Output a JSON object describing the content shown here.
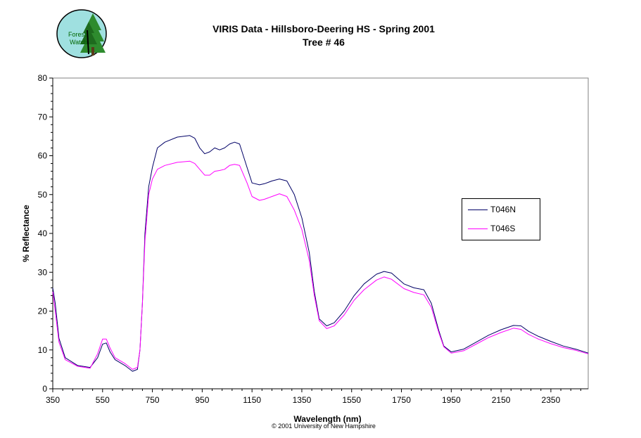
{
  "title_line1": "VIRIS Data - Hillsboro-Deering HS - Spring 2001",
  "title_line2": "Tree # 46",
  "logo_text": [
    "Forest",
    "Watch"
  ],
  "copyright": "© 2001 University of New Hampshire",
  "chart_data": {
    "type": "line",
    "title": "VIRIS Data - Hillsboro-Deering HS - Spring 2001 Tree # 46",
    "xlabel": "Wavelength (nm)",
    "ylabel": "% Reflectance",
    "xlim": [
      350,
      2500
    ],
    "ylim": [
      0,
      80
    ],
    "xticks": [
      350,
      550,
      750,
      950,
      1150,
      1350,
      1550,
      1750,
      1950,
      2150,
      2350
    ],
    "yticks": [
      0,
      10,
      20,
      30,
      40,
      50,
      60,
      70,
      80
    ],
    "grid": false,
    "legend_position": "right",
    "series": [
      {
        "name": "T046N",
        "color": "#000066",
        "points": [
          [
            350,
            26
          ],
          [
            360,
            22
          ],
          [
            375,
            13
          ],
          [
            400,
            8
          ],
          [
            450,
            6
          ],
          [
            500,
            5.5
          ],
          [
            530,
            8
          ],
          [
            550,
            11.5
          ],
          [
            565,
            11.8
          ],
          [
            580,
            9.5
          ],
          [
            600,
            7.5
          ],
          [
            640,
            6
          ],
          [
            670,
            4.5
          ],
          [
            690,
            5
          ],
          [
            700,
            10
          ],
          [
            710,
            22
          ],
          [
            720,
            40
          ],
          [
            735,
            52
          ],
          [
            750,
            57
          ],
          [
            770,
            62
          ],
          [
            800,
            63.5
          ],
          [
            850,
            64.8
          ],
          [
            900,
            65.2
          ],
          [
            920,
            64.5
          ],
          [
            940,
            62
          ],
          [
            960,
            60.5
          ],
          [
            980,
            61
          ],
          [
            1000,
            62
          ],
          [
            1020,
            61.5
          ],
          [
            1040,
            62
          ],
          [
            1060,
            63
          ],
          [
            1080,
            63.5
          ],
          [
            1100,
            63
          ],
          [
            1130,
            57
          ],
          [
            1150,
            53
          ],
          [
            1180,
            52.5
          ],
          [
            1200,
            52.8
          ],
          [
            1230,
            53.5
          ],
          [
            1260,
            54
          ],
          [
            1290,
            53.5
          ],
          [
            1320,
            50
          ],
          [
            1350,
            44
          ],
          [
            1380,
            35
          ],
          [
            1400,
            25
          ],
          [
            1420,
            18
          ],
          [
            1450,
            16.2
          ],
          [
            1480,
            17
          ],
          [
            1520,
            20
          ],
          [
            1560,
            24
          ],
          [
            1600,
            27
          ],
          [
            1650,
            29.5
          ],
          [
            1680,
            30.2
          ],
          [
            1710,
            29.8
          ],
          [
            1760,
            27
          ],
          [
            1800,
            26
          ],
          [
            1840,
            25.5
          ],
          [
            1870,
            22
          ],
          [
            1900,
            15
          ],
          [
            1920,
            11
          ],
          [
            1950,
            9.5
          ],
          [
            2000,
            10.2
          ],
          [
            2050,
            12
          ],
          [
            2100,
            13.8
          ],
          [
            2150,
            15.2
          ],
          [
            2200,
            16.3
          ],
          [
            2230,
            16.2
          ],
          [
            2260,
            14.8
          ],
          [
            2300,
            13.5
          ],
          [
            2350,
            12.2
          ],
          [
            2400,
            11
          ],
          [
            2450,
            10.2
          ],
          [
            2500,
            9.2
          ]
        ]
      },
      {
        "name": "T046S",
        "color": "#ff00ff",
        "points": [
          [
            350,
            25
          ],
          [
            360,
            20
          ],
          [
            375,
            12
          ],
          [
            400,
            7.5
          ],
          [
            450,
            5.8
          ],
          [
            500,
            5.3
          ],
          [
            530,
            9
          ],
          [
            550,
            12.8
          ],
          [
            565,
            12.8
          ],
          [
            580,
            10.5
          ],
          [
            600,
            8
          ],
          [
            640,
            6.5
          ],
          [
            670,
            5
          ],
          [
            690,
            5.5
          ],
          [
            700,
            10
          ],
          [
            710,
            22
          ],
          [
            720,
            38
          ],
          [
            735,
            50
          ],
          [
            750,
            54
          ],
          [
            770,
            56.5
          ],
          [
            800,
            57.5
          ],
          [
            850,
            58.3
          ],
          [
            900,
            58.6
          ],
          [
            920,
            58
          ],
          [
            940,
            56.5
          ],
          [
            960,
            55
          ],
          [
            980,
            55
          ],
          [
            1000,
            56
          ],
          [
            1020,
            56.2
          ],
          [
            1040,
            56.5
          ],
          [
            1060,
            57.5
          ],
          [
            1080,
            57.8
          ],
          [
            1100,
            57.5
          ],
          [
            1130,
            53
          ],
          [
            1150,
            49.5
          ],
          [
            1180,
            48.5
          ],
          [
            1200,
            48.8
          ],
          [
            1230,
            49.5
          ],
          [
            1260,
            50.2
          ],
          [
            1290,
            49.5
          ],
          [
            1320,
            46
          ],
          [
            1350,
            41
          ],
          [
            1380,
            33
          ],
          [
            1400,
            24
          ],
          [
            1420,
            17.5
          ],
          [
            1450,
            15.5
          ],
          [
            1480,
            16.2
          ],
          [
            1520,
            19
          ],
          [
            1560,
            22.8
          ],
          [
            1600,
            25.5
          ],
          [
            1650,
            28
          ],
          [
            1680,
            28.8
          ],
          [
            1710,
            28.2
          ],
          [
            1760,
            25.8
          ],
          [
            1800,
            24.8
          ],
          [
            1840,
            24.2
          ],
          [
            1870,
            21
          ],
          [
            1900,
            14.5
          ],
          [
            1920,
            10.8
          ],
          [
            1950,
            9.2
          ],
          [
            2000,
            9.8
          ],
          [
            2050,
            11.5
          ],
          [
            2100,
            13.2
          ],
          [
            2150,
            14.5
          ],
          [
            2200,
            15.6
          ],
          [
            2230,
            15.3
          ],
          [
            2260,
            14
          ],
          [
            2300,
            12.8
          ],
          [
            2350,
            11.6
          ],
          [
            2400,
            10.6
          ],
          [
            2450,
            9.9
          ],
          [
            2500,
            9
          ]
        ]
      }
    ]
  }
}
